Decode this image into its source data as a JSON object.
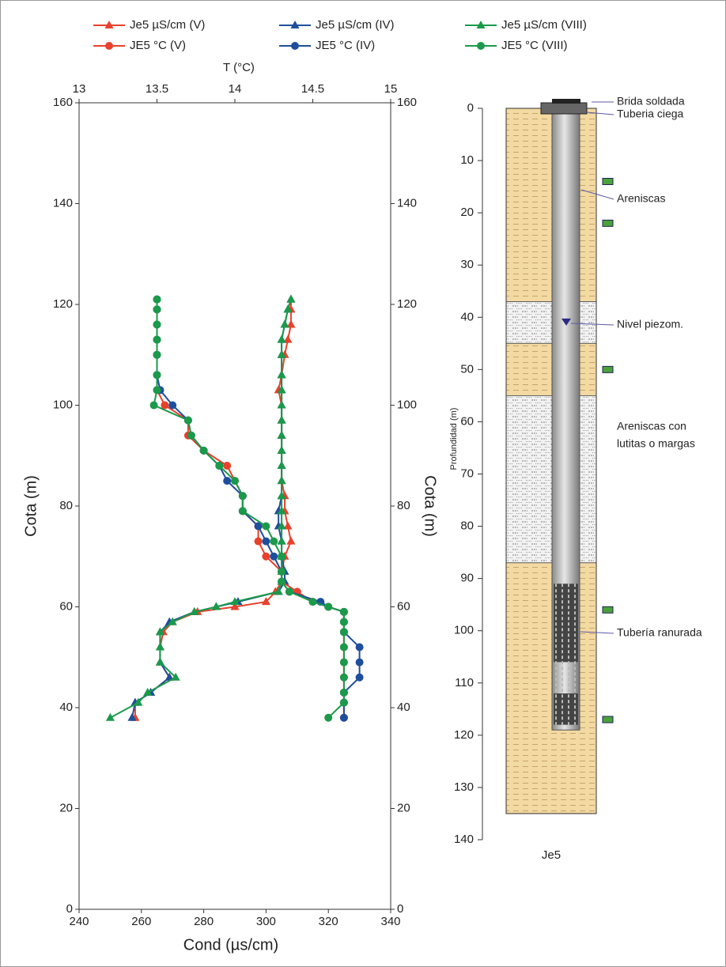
{
  "chart_data": {
    "type": "line",
    "xlabel": "Cond (µs/cm)",
    "x2label": "T (°C)",
    "ylabel": "Cota (m)",
    "xlim": [
      240,
      340
    ],
    "xticks": [
      240,
      260,
      280,
      300,
      320,
      340
    ],
    "x2lim": [
      13,
      15
    ],
    "x2ticks": [
      13,
      13.5,
      14,
      14.5,
      15
    ],
    "ylim": [
      0,
      160
    ],
    "yticks": [
      0,
      20,
      40,
      60,
      80,
      100,
      120,
      140,
      160
    ],
    "y": [
      121,
      119,
      116,
      113,
      110,
      106,
      103,
      100,
      97,
      94,
      91,
      88,
      85,
      82,
      79,
      76,
      73,
      70,
      67,
      65,
      63,
      61,
      60,
      59,
      57,
      55,
      52,
      49,
      46,
      43,
      41,
      38
    ],
    "series": [
      {
        "name": "Je5 µS/cm (V)",
        "color": "#e8412c",
        "marker": "triangle",
        "axis": "x",
        "values": [
          308,
          308,
          308,
          307,
          306,
          305,
          304,
          305,
          305,
          305,
          305,
          305,
          305,
          306,
          306,
          307,
          308,
          306,
          305,
          305,
          303,
          300,
          290,
          278,
          270,
          267,
          266,
          266,
          269,
          263,
          258,
          258
        ]
      },
      {
        "name": "Je5 µS/cm (IV)",
        "color": "#1f4e9c",
        "marker": "triangle",
        "axis": "x",
        "values": [
          308,
          307,
          306,
          305,
          305,
          305,
          305,
          305,
          305,
          305,
          305,
          305,
          305,
          305,
          304,
          304,
          305,
          305,
          306,
          306,
          304,
          291,
          284,
          277,
          269,
          266,
          266,
          266,
          269,
          263,
          258,
          257
        ]
      },
      {
        "name": "Je5 µS/cm (VIII)",
        "color": "#1a9a4a",
        "marker": "triangle",
        "axis": "x",
        "values": [
          308,
          307,
          306,
          305,
          305,
          305,
          305,
          305,
          305,
          305,
          305,
          305,
          305,
          305,
          305,
          305,
          305,
          305,
          305,
          305,
          304,
          290,
          284,
          277,
          270,
          266,
          266,
          266,
          271,
          262,
          259,
          250
        ]
      },
      {
        "name": "JE5 °C (V)",
        "color": "#e8412c",
        "marker": "circle",
        "axis": "x2",
        "values": [
          13.5,
          13.5,
          13.5,
          13.5,
          13.5,
          13.5,
          13.5,
          13.55,
          13.7,
          13.7,
          13.8,
          13.95,
          14.0,
          14.05,
          14.05,
          14.15,
          14.15,
          14.2,
          14.3,
          14.3,
          14.4,
          14.5,
          14.6,
          14.7,
          14.7,
          14.7,
          14.7,
          14.7,
          14.7,
          14.7,
          14.7,
          14.7
        ]
      },
      {
        "name": "JE5 °C (IV)",
        "color": "#1f4e9c",
        "marker": "circle",
        "axis": "x2",
        "values": [
          13.5,
          13.5,
          13.5,
          13.5,
          13.5,
          13.5,
          13.52,
          13.6,
          13.7,
          13.72,
          13.8,
          13.9,
          13.95,
          14.05,
          14.05,
          14.15,
          14.2,
          14.25,
          14.3,
          14.3,
          14.35,
          14.55,
          14.6,
          14.7,
          14.7,
          14.7,
          14.8,
          14.8,
          14.8,
          14.7,
          14.7,
          14.7
        ]
      },
      {
        "name": "JE5 °C (VIII)",
        "color": "#1a9a4a",
        "marker": "circle",
        "axis": "x2",
        "values": [
          13.5,
          13.5,
          13.5,
          13.5,
          13.5,
          13.5,
          13.5,
          13.48,
          13.7,
          13.72,
          13.8,
          13.9,
          14.0,
          14.05,
          14.05,
          14.2,
          14.25,
          14.3,
          14.3,
          14.3,
          14.35,
          14.5,
          14.6,
          14.7,
          14.7,
          14.7,
          14.7,
          14.7,
          14.7,
          14.7,
          14.7,
          14.6
        ]
      }
    ]
  },
  "well": {
    "ylabel": "Profundidad (m)",
    "ylim": [
      0,
      140
    ],
    "yticks": [
      0,
      10,
      20,
      30,
      40,
      50,
      60,
      70,
      80,
      90,
      100,
      110,
      120,
      130,
      140
    ],
    "name": "Je5",
    "column_bottom": 135,
    "layers": [
      {
        "top": 0,
        "bottom": 37,
        "kind": "sand"
      },
      {
        "top": 37,
        "bottom": 45,
        "kind": "mixed"
      },
      {
        "top": 45,
        "bottom": 55,
        "kind": "sand"
      },
      {
        "top": 55,
        "bottom": 87,
        "kind": "mixed"
      },
      {
        "top": 87,
        "bottom": 135,
        "kind": "sand"
      }
    ],
    "pipe_bottom": 119,
    "screens": [
      [
        91,
        106
      ],
      [
        112,
        118
      ]
    ],
    "water_level": 41,
    "samples": [
      14,
      22,
      50,
      96,
      117
    ],
    "labels": [
      "Brida soldada",
      "Tuberia ciega",
      "Areniscas",
      "Nivel piezom.",
      "Areniscas con",
      "lutitas o margas",
      "Tubería ranurada"
    ]
  }
}
